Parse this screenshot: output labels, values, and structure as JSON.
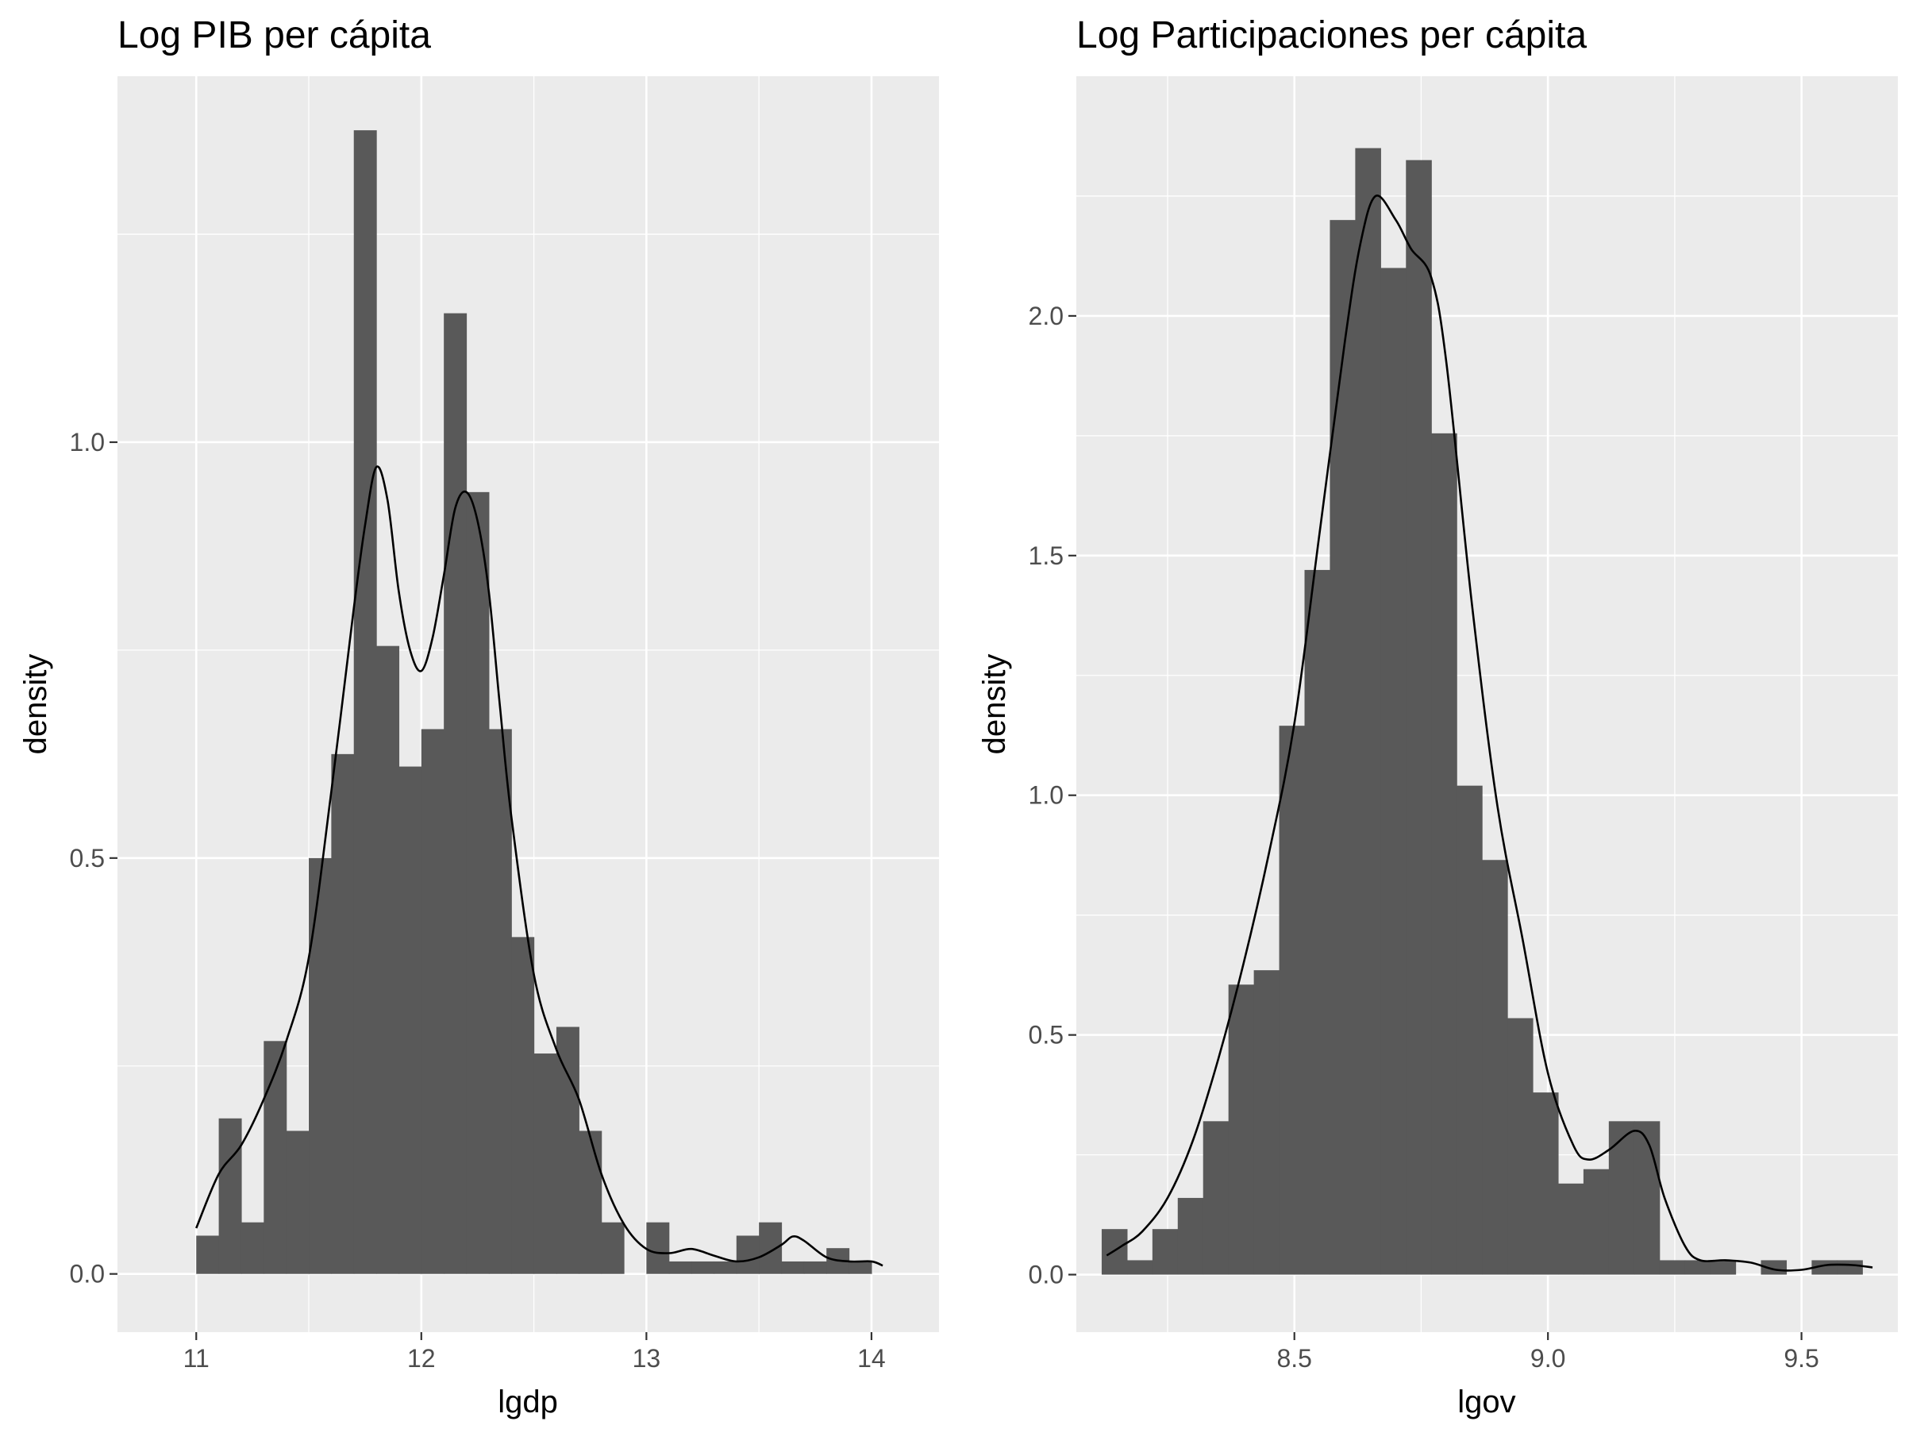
{
  "chart_data": [
    {
      "type": "histogram",
      "title": "Log PIB per cápita",
      "xlabel": "lgdp",
      "ylabel": "density",
      "xlim": [
        10.65,
        14.3
      ],
      "ylim": [
        -0.07,
        1.44
      ],
      "xticks": [
        {
          "value": 11,
          "label": "11"
        },
        {
          "value": 12,
          "label": "12"
        },
        {
          "value": 13,
          "label": "13"
        },
        {
          "value": 14,
          "label": "14"
        }
      ],
      "yticks": [
        {
          "value": 0.0,
          "label": "0.0"
        },
        {
          "value": 0.5,
          "label": "0.5"
        },
        {
          "value": 1.0,
          "label": "1.0"
        }
      ],
      "bins": {
        "start": 11.0,
        "width": 0.1,
        "values": [
          0.046,
          0.187,
          0.062,
          0.28,
          0.172,
          0.5,
          0.625,
          1.375,
          0.755,
          0.61,
          0.655,
          1.155,
          0.94,
          0.655,
          0.405,
          0.265,
          0.297,
          0.172,
          0.062,
          0.0,
          0.062,
          0.015,
          0.015,
          0.015,
          0.046,
          0.062,
          0.015,
          0.015,
          0.031,
          0.015
        ]
      },
      "density": {
        "x": [
          11.0,
          11.1,
          11.2,
          11.3,
          11.4,
          11.5,
          11.6,
          11.7,
          11.75,
          11.8,
          11.85,
          11.9,
          11.95,
          12.0,
          12.05,
          12.1,
          12.15,
          12.2,
          12.25,
          12.3,
          12.35,
          12.4,
          12.5,
          12.6,
          12.7,
          12.8,
          12.9,
          13.0,
          13.1,
          13.2,
          13.3,
          13.4,
          13.5,
          13.6,
          13.65,
          13.7,
          13.8,
          13.9,
          14.0,
          14.05
        ],
        "y": [
          0.055,
          0.12,
          0.155,
          0.21,
          0.28,
          0.38,
          0.58,
          0.8,
          0.9,
          0.97,
          0.93,
          0.82,
          0.75,
          0.725,
          0.765,
          0.84,
          0.92,
          0.94,
          0.905,
          0.82,
          0.68,
          0.55,
          0.36,
          0.27,
          0.21,
          0.12,
          0.06,
          0.03,
          0.025,
          0.03,
          0.022,
          0.015,
          0.02,
          0.035,
          0.045,
          0.04,
          0.02,
          0.015,
          0.015,
          0.01
        ]
      }
    },
    {
      "type": "histogram",
      "title": "Log Participaciones per cápita",
      "xlabel": "lgov",
      "ylabel": "density",
      "xlim": [
        8.07,
        9.69
      ],
      "ylim": [
        -0.12,
        2.5
      ],
      "xticks": [
        {
          "value": 8.5,
          "label": "8.5"
        },
        {
          "value": 9.0,
          "label": "9.0"
        },
        {
          "value": 9.5,
          "label": "9.5"
        }
      ],
      "yticks": [
        {
          "value": 0.0,
          "label": "0.0"
        },
        {
          "value": 0.5,
          "label": "0.5"
        },
        {
          "value": 1.0,
          "label": "1.0"
        },
        {
          "value": 1.5,
          "label": "1.5"
        },
        {
          "value": 2.0,
          "label": "2.0"
        }
      ],
      "bins": {
        "start": 8.12,
        "width": 0.05,
        "values": [
          0.095,
          0.03,
          0.095,
          0.16,
          0.32,
          0.605,
          0.635,
          1.145,
          1.47,
          2.2,
          2.35,
          2.1,
          2.325,
          1.755,
          1.02,
          0.865,
          0.535,
          0.38,
          0.19,
          0.22,
          0.32,
          0.32,
          0.03,
          0.03,
          0.03,
          0.0,
          0.03,
          0.0,
          0.03,
          0.03
        ]
      },
      "density": {
        "x": [
          8.13,
          8.16,
          8.2,
          8.25,
          8.3,
          8.35,
          8.4,
          8.45,
          8.5,
          8.55,
          8.6,
          8.63,
          8.66,
          8.7,
          8.73,
          8.77,
          8.8,
          8.85,
          8.9,
          8.95,
          9.0,
          9.05,
          9.08,
          9.12,
          9.17,
          9.2,
          9.23,
          9.27,
          9.3,
          9.35,
          9.4,
          9.45,
          9.5,
          9.55,
          9.6,
          9.64
        ],
        "y": [
          0.04,
          0.06,
          0.09,
          0.16,
          0.28,
          0.45,
          0.65,
          0.88,
          1.15,
          1.55,
          1.95,
          2.15,
          2.25,
          2.2,
          2.14,
          2.08,
          1.9,
          1.4,
          0.98,
          0.7,
          0.42,
          0.27,
          0.24,
          0.26,
          0.3,
          0.27,
          0.16,
          0.06,
          0.03,
          0.03,
          0.025,
          0.01,
          0.01,
          0.02,
          0.02,
          0.015
        ]
      }
    }
  ]
}
